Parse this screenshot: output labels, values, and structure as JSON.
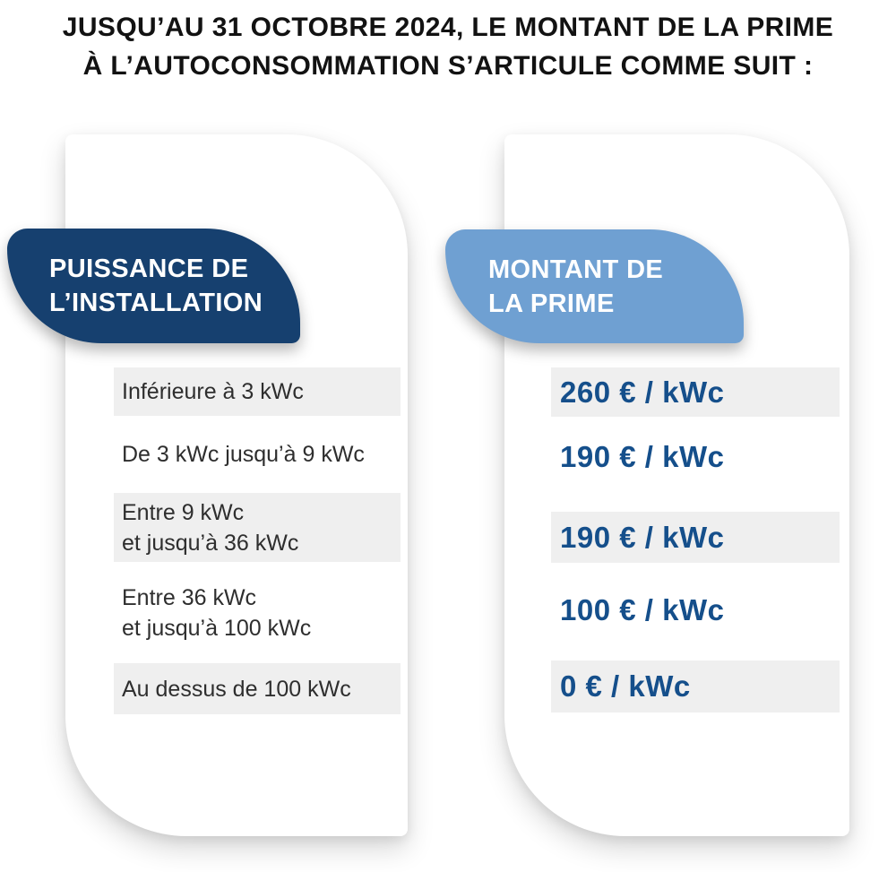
{
  "title": {
    "line1": "JUSQU’AU 31 OCTOBRE 2024, LE MONTANT DE LA PRIME",
    "line2": "À L’AUTOCONSOMMATION S’ARTICULE COMME SUIT :"
  },
  "columns": {
    "power": {
      "header_line1": "PUISSANCE DE",
      "header_line2": "L’INSTALLATION"
    },
    "amount": {
      "header_line1": "MONTANT DE",
      "header_line2": "LA PRIME"
    }
  },
  "rows": [
    {
      "power_line1": "Inférieure à 3 kWc",
      "power_line2": "",
      "amount": "260 € / kWc"
    },
    {
      "power_line1": "De 3 kWc jusqu’à 9 kWc",
      "power_line2": "",
      "amount": "190 € / kWc"
    },
    {
      "power_line1": "Entre 9 kWc",
      "power_line2": "et jusqu’à 36 kWc",
      "amount": "190 € / kWc"
    },
    {
      "power_line1": "Entre 36 kWc",
      "power_line2": "et jusqu’à 100 kWc",
      "amount": "100 € / kWc"
    },
    {
      "power_line1": "Au dessus de 100 kWc",
      "power_line2": "",
      "amount": "0 € / kWc"
    }
  ],
  "colors": {
    "header_power_bg": "#16406F",
    "header_amount_bg": "#6FA0D2",
    "amount_text": "#154F8B",
    "shaded_row_bg": "#EFEFEF",
    "row_text": "#2E2E2E",
    "title_text": "#121212"
  }
}
